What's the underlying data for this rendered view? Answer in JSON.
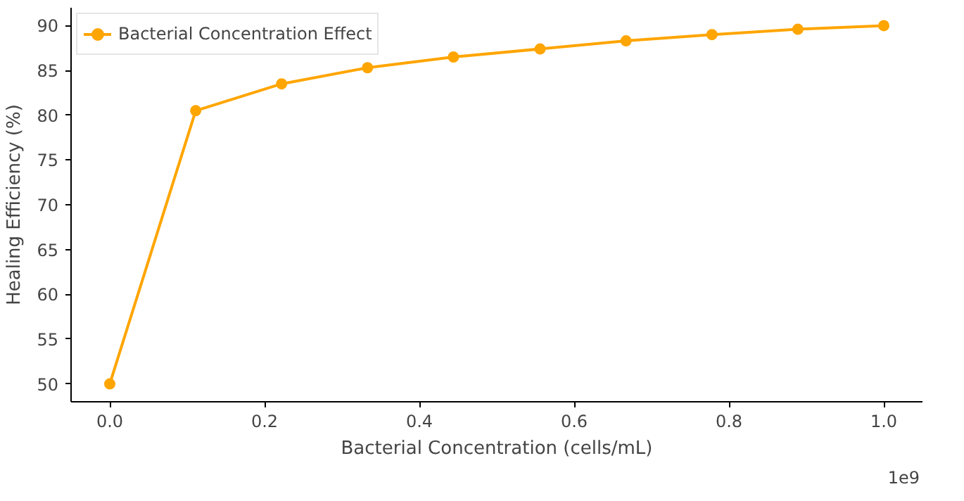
{
  "chart_data": {
    "type": "line",
    "xlabel": "Bacterial Concentration (cells/mL)",
    "ylabel": "Healing Efficiency (%)",
    "x": [
      0,
      0.111,
      0.222,
      0.333,
      0.444,
      0.556,
      0.667,
      0.778,
      0.889,
      1.0
    ],
    "series": [
      {
        "name": "Bacterial Concentration Effect",
        "color": "#ffa500",
        "values": [
          50,
          80.5,
          83.5,
          85.3,
          86.5,
          87.4,
          88.3,
          89.0,
          89.6,
          90.0
        ]
      }
    ],
    "xlim": [
      -0.05,
      1.05
    ],
    "xticks": [
      {
        "value": 0,
        "label": "0.0"
      },
      0.2,
      0.4,
      0.6,
      0.8,
      {
        "value": 1,
        "label": "1.0"
      }
    ],
    "ylim": [
      48,
      92
    ],
    "yticks": [
      50,
      55,
      60,
      65,
      70,
      75,
      80,
      85,
      90
    ],
    "annotations": [
      "1e9"
    ],
    "marker": "circle",
    "line_style": "solid",
    "legend": "top left",
    "grid": false
  }
}
